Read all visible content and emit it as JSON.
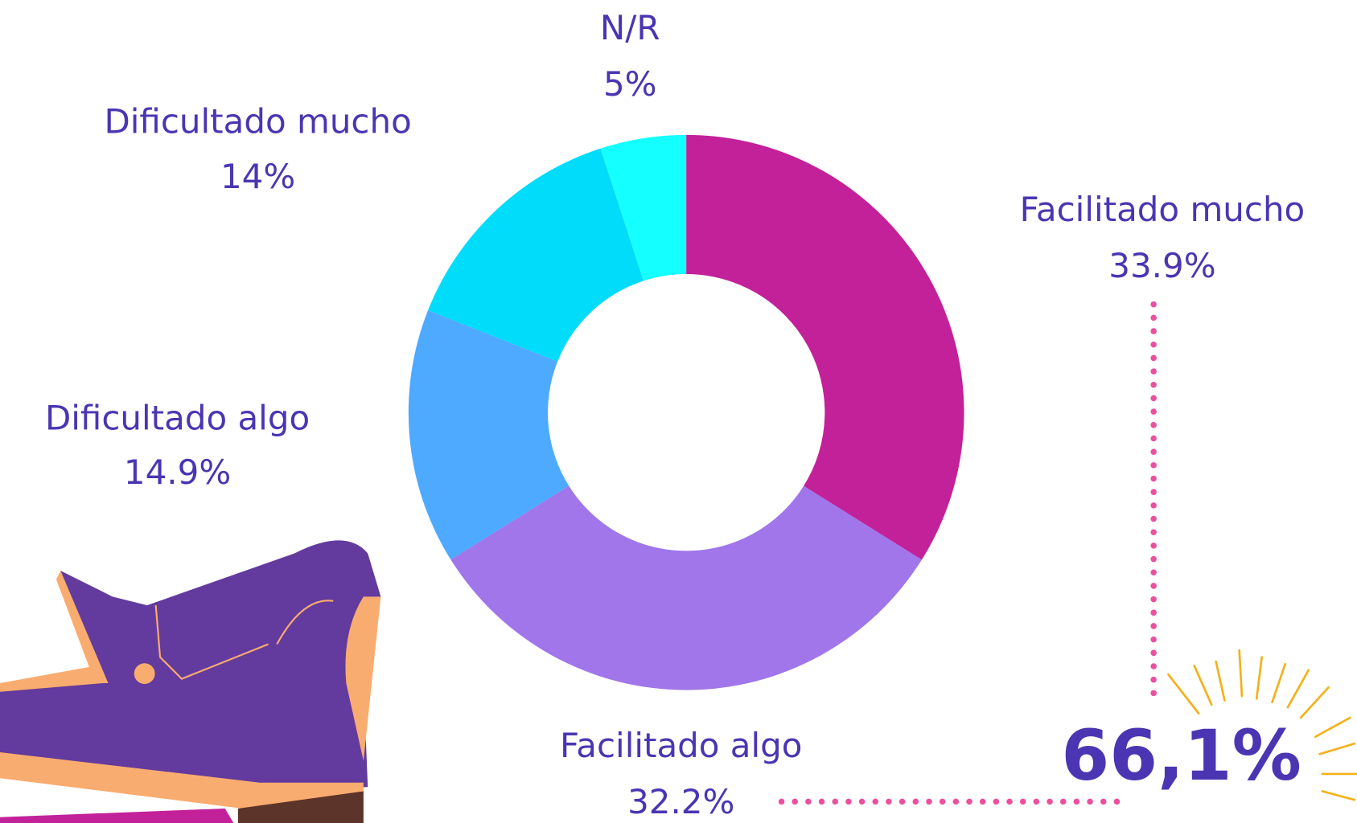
{
  "chart_data": {
    "type": "donut",
    "categories": [
      "Facilitado mucho",
      "Facilitado algo",
      "Dificultado algo",
      "Dificultado mucho",
      "N/R"
    ],
    "values": [
      33.9,
      32.2,
      14.9,
      14,
      5
    ],
    "value_labels": [
      "33.9%",
      "32.2%",
      "14.9%",
      "14%",
      "5%"
    ],
    "colors": [
      "#c2219a",
      "#a076ea",
      "#4daaff",
      "#00dcfa",
      "#14ffff"
    ],
    "annotation": "66,1%"
  }
}
